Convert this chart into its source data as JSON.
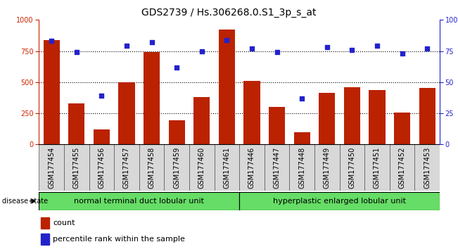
{
  "title": "GDS2739 / Hs.306268.0.S1_3p_s_at",
  "samples": [
    "GSM177454",
    "GSM177455",
    "GSM177456",
    "GSM177457",
    "GSM177458",
    "GSM177459",
    "GSM177460",
    "GSM177461",
    "GSM177446",
    "GSM177447",
    "GSM177448",
    "GSM177449",
    "GSM177450",
    "GSM177451",
    "GSM177452",
    "GSM177453"
  ],
  "counts": [
    840,
    330,
    120,
    500,
    740,
    195,
    380,
    920,
    510,
    300,
    100,
    415,
    460,
    435,
    255,
    455
  ],
  "percentiles": [
    83,
    74,
    39,
    79,
    82,
    62,
    75,
    84,
    77,
    74,
    37,
    78,
    76,
    79,
    73,
    77
  ],
  "group1_label": "normal terminal duct lobular unit",
  "group2_label": "hyperplastic enlarged lobular unit",
  "group1_count": 8,
  "group2_count": 8,
  "bar_color": "#bb2200",
  "dot_color": "#2222cc",
  "left_axis_color": "#cc2200",
  "right_axis_color": "#2222cc",
  "ylim_left": [
    0,
    1000
  ],
  "ylim_right": [
    0,
    100
  ],
  "yticks_left": [
    0,
    250,
    500,
    750,
    1000
  ],
  "yticks_right": [
    0,
    25,
    50,
    75,
    100
  ],
  "ytick_right_labels": [
    "0",
    "25",
    "50",
    "75",
    "100%"
  ],
  "group_color": "#66dd66",
  "title_fontsize": 10,
  "tick_fontsize": 7,
  "legend_fontsize": 8,
  "disease_state_label": "disease state"
}
